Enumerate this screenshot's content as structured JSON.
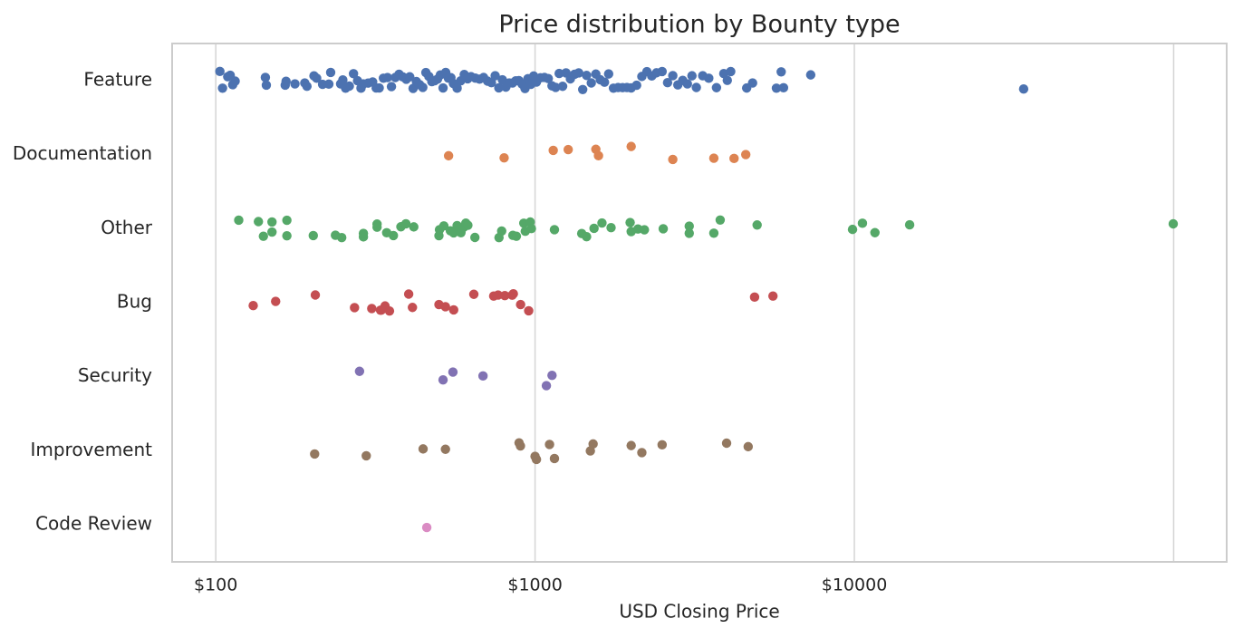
{
  "chart_data": {
    "type": "strip",
    "title": "Price distribution by Bounty type",
    "xlabel": "USD Closing Price",
    "xscale": "log",
    "xlim": [
      73,
      146600
    ],
    "xticks": [
      {
        "value": 100,
        "label": "$100"
      },
      {
        "value": 1000,
        "label": "$1000"
      },
      {
        "value": 10000,
        "label": "$10000"
      }
    ],
    "xgrid": [
      100,
      1000,
      10000,
      100000
    ],
    "grid": true,
    "series": [
      {
        "name": "Feature",
        "color": "#4c72b0",
        "values": [
          103,
          105,
          109,
          111,
          113,
          115,
          143,
          144,
          165,
          166,
          177,
          190,
          193,
          203,
          207,
          216,
          226,
          229,
          246,
          250,
          255,
          262,
          270,
          278,
          285,
          290,
          300,
          310,
          318,
          325,
          335,
          345,
          355,
          365,
          375,
          385,
          395,
          405,
          415,
          425,
          435,
          445,
          455,
          465,
          475,
          485,
          495,
          505,
          515,
          525,
          535,
          545,
          555,
          570,
          585,
          600,
          615,
          630,
          650,
          670,
          690,
          710,
          730,
          750,
          770,
          790,
          810,
          830,
          850,
          870,
          890,
          910,
          930,
          950,
          970,
          990,
          1010,
          1040,
          1070,
          1100,
          1130,
          1160,
          1190,
          1220,
          1250,
          1290,
          1330,
          1370,
          1410,
          1450,
          1500,
          1550,
          1600,
          1650,
          1700,
          1760,
          1820,
          1880,
          1940,
          2000,
          2080,
          2160,
          2240,
          2320,
          2400,
          2500,
          2600,
          2700,
          2800,
          2900,
          3000,
          3100,
          3200,
          3350,
          3500,
          3700,
          3900,
          4000,
          4100,
          4600,
          4800,
          5700,
          5900,
          6000,
          7300,
          33900
        ]
      },
      {
        "name": "Documentation",
        "color": "#dd8452",
        "values": [
          536,
          800,
          1140,
          1270,
          1550,
          1580,
          2000,
          2700,
          3630,
          4200,
          4570
        ]
      },
      {
        "name": "Other",
        "color": "#55a868",
        "values": [
          118,
          136,
          141,
          150,
          150,
          167,
          167,
          202,
          237,
          248,
          290,
          290,
          320,
          320,
          343,
          360,
          380,
          394,
          417,
          500,
          502,
          518,
          543,
          556,
          570,
          586,
          598,
          607,
          616,
          648,
          771,
          786,
          852,
          874,
          922,
          932,
          966,
          974,
          1150,
          1400,
          1450,
          1530,
          1620,
          1730,
          1985,
          2000,
          2100,
          2200,
          2520,
          3040,
          3040,
          3630,
          3800,
          4960,
          9870,
          10600,
          11600,
          14900,
          99700
        ]
      },
      {
        "name": "Bug",
        "color": "#c44e52",
        "values": [
          131,
          154,
          205,
          272,
          308,
          328,
          330,
          339,
          350,
          402,
          413,
          500,
          524,
          556,
          643,
          742,
          766,
          804,
          848,
          855,
          901,
          955,
          4870,
          5560
        ]
      },
      {
        "name": "Security",
        "color": "#8172b3",
        "values": [
          282,
          515,
          553,
          687,
          1085,
          1130
        ]
      },
      {
        "name": "Improvement",
        "color": "#937860",
        "values": [
          204,
          296,
          446,
          524,
          891,
          900,
          1000,
          1010,
          1110,
          1150,
          1490,
          1520,
          2000,
          2160,
          2500,
          3980,
          4650
        ]
      },
      {
        "name": "Code Review",
        "color": "#da8bc3",
        "values": [
          458
        ]
      }
    ]
  }
}
